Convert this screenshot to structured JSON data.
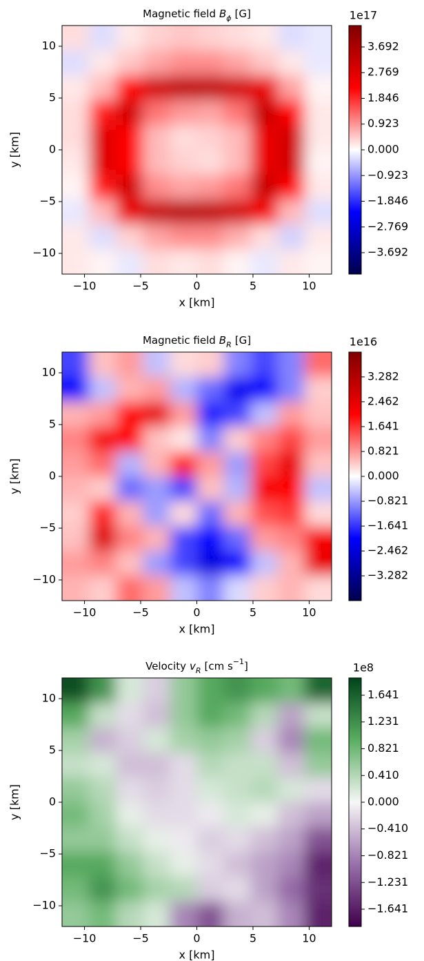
{
  "chart_data": [
    {
      "type": "heatmap",
      "title": "Magnetic field",
      "title_symbol": "B",
      "title_sub": "ϕ",
      "title_unit": "[G]",
      "xlabel": "x [km]",
      "ylabel": "y [km]",
      "xlim": [
        -12,
        12
      ],
      "ylim": [
        -12,
        12
      ],
      "xticks": [
        {
          "value": -10,
          "label": "−10"
        },
        {
          "value": -5,
          "label": "−5"
        },
        0,
        5,
        10
      ],
      "yticks": [
        {
          "value": -10,
          "label": "−10"
        },
        {
          "value": -5,
          "label": "−5"
        },
        0,
        5,
        10
      ],
      "z": [
        [
          0.3,
          -0.3,
          0.2,
          0.4,
          0.5,
          0.4,
          0.3,
          0.2,
          -0.3,
          -0.2
        ],
        [
          -0.3,
          0.2,
          0.5,
          0.8,
          1.0,
          1.0,
          0.8,
          0.5,
          0.2,
          -0.2
        ],
        [
          0.2,
          0.6,
          2.2,
          3.0,
          3.3,
          3.3,
          3.0,
          2.6,
          0.8,
          0.1
        ],
        [
          0.3,
          2.0,
          3.0,
          1.2,
          0.9,
          0.8,
          1.2,
          3.2,
          2.2,
          0.2
        ],
        [
          0.3,
          2.8,
          2.2,
          0.6,
          0.3,
          0.4,
          0.6,
          2.6,
          3.0,
          0.2
        ],
        [
          0.2,
          2.8,
          2.2,
          0.6,
          0.4,
          0.3,
          0.6,
          2.6,
          3.0,
          0.1
        ],
        [
          0.1,
          2.0,
          3.0,
          1.0,
          0.8,
          0.9,
          1.2,
          3.2,
          2.2,
          0.2
        ],
        [
          -0.2,
          0.6,
          2.6,
          3.2,
          3.4,
          3.3,
          3.0,
          2.4,
          0.6,
          -0.3
        ],
        [
          0.2,
          -0.3,
          0.4,
          0.8,
          1.0,
          1.0,
          0.7,
          0.3,
          -0.4,
          0.2
        ],
        [
          0.2,
          0.1,
          -0.2,
          0.3,
          0.2,
          0.3,
          0.1,
          -0.2,
          0.2,
          0.1
        ]
      ],
      "colorbar": {
        "offset_label": "1e17",
        "clim": [
          -4.46,
          4.46
        ],
        "colormap": [
          "#00004c",
          "#0000ff",
          "#ffffff",
          "#ff0000",
          "#800000"
        ],
        "ticks": [
          {
            "value": -3.692,
            "label": "−3.692"
          },
          {
            "value": -2.769,
            "label": "−2.769"
          },
          {
            "value": -1.846,
            "label": "−1.846"
          },
          {
            "value": -0.923,
            "label": "−0.923"
          },
          {
            "value": 0,
            "label": "0.000"
          },
          0.923,
          1.846,
          2.769,
          3.692
        ]
      }
    },
    {
      "type": "heatmap",
      "title": "Magnetic field",
      "title_symbol": "B",
      "title_sub": "R",
      "title_unit": "[G]",
      "xlabel": "x [km]",
      "ylabel": "y [km]",
      "xlim": [
        -12,
        12
      ],
      "ylim": [
        -12,
        12
      ],
      "xticks": [
        {
          "value": -10,
          "label": "−10"
        },
        {
          "value": -5,
          "label": "−5"
        },
        0,
        5,
        10
      ],
      "yticks": [
        {
          "value": -10,
          "label": "−10"
        },
        {
          "value": -5,
          "label": "−5"
        },
        0,
        5,
        10
      ],
      "z": [
        [
          -1.5,
          0.5,
          0.8,
          -0.5,
          0.3,
          0.4,
          -1.0,
          -1.5,
          -1.0,
          1.2
        ],
        [
          -2.0,
          -0.5,
          0.6,
          0.8,
          -0.6,
          -1.2,
          -2.2,
          -2.0,
          -1.0,
          0.4
        ],
        [
          0.6,
          0.8,
          2.0,
          2.4,
          0.8,
          -1.8,
          -1.5,
          -0.5,
          0.8,
          0.5
        ],
        [
          1.0,
          2.2,
          2.0,
          0.5,
          0.2,
          -1.0,
          0.4,
          1.0,
          1.5,
          0.8
        ],
        [
          0.8,
          1.2,
          -0.6,
          0.6,
          1.8,
          0.8,
          -0.8,
          1.5,
          2.4,
          0.5
        ],
        [
          0.6,
          0.4,
          -1.2,
          -0.8,
          -1.5,
          0.5,
          -0.6,
          2.2,
          2.0,
          -0.5
        ],
        [
          0.4,
          1.8,
          0.6,
          -0.8,
          0.3,
          -1.2,
          0.6,
          1.4,
          1.6,
          0.3
        ],
        [
          0.5,
          2.6,
          1.0,
          0.6,
          -1.5,
          -2.0,
          -1.2,
          0.8,
          1.0,
          2.2
        ],
        [
          0.8,
          1.0,
          0.5,
          -0.8,
          -1.5,
          -2.4,
          -2.0,
          -0.5,
          0.6,
          2.4
        ],
        [
          0.6,
          0.4,
          1.2,
          0.8,
          -0.5,
          -1.0,
          -0.3,
          0.4,
          0.6,
          0.3
        ]
      ],
      "colorbar": {
        "offset_label": "1e16",
        "clim": [
          -4.1,
          4.1
        ],
        "colormap": [
          "#00004c",
          "#0000ff",
          "#ffffff",
          "#ff0000",
          "#800000"
        ],
        "ticks": [
          {
            "value": -3.282,
            "label": "−3.282"
          },
          {
            "value": -2.462,
            "label": "−2.462"
          },
          {
            "value": -1.641,
            "label": "−1.641"
          },
          {
            "value": -0.821,
            "label": "−0.821"
          },
          {
            "value": 0,
            "label": "0.000"
          },
          0.821,
          1.641,
          2.462,
          3.282
        ]
      }
    },
    {
      "type": "heatmap",
      "title": "Velocity",
      "title_symbol": "v",
      "title_sub": "R",
      "title_unit": "[cm s",
      "title_unit_sup": "−1",
      "title_unit_end": "]",
      "xlabel": "x [km]",
      "ylabel": "y [km]",
      "xlim": [
        -12,
        12
      ],
      "ylim": [
        -12,
        12
      ],
      "xticks": [
        {
          "value": -10,
          "label": "−10"
        },
        {
          "value": -5,
          "label": "−5"
        },
        0,
        5,
        10
      ],
      "yticks": [
        {
          "value": -10,
          "label": "−10"
        },
        {
          "value": -5,
          "label": "−5"
        },
        0,
        5,
        10
      ],
      "z": [
        [
          1.8,
          1.2,
          0.2,
          -0.3,
          0.6,
          1.0,
          1.2,
          1.0,
          0.8,
          1.6
        ],
        [
          1.0,
          0.3,
          -0.2,
          -0.4,
          0.6,
          1.0,
          0.8,
          0.4,
          -0.6,
          0.3
        ],
        [
          0.5,
          -0.5,
          -0.3,
          0.2,
          0.5,
          0.6,
          0.5,
          -0.3,
          -0.8,
          0.8
        ],
        [
          0.3,
          0.2,
          -0.4,
          -0.4,
          -0.2,
          0.4,
          0.3,
          0.3,
          -0.4,
          0.6
        ],
        [
          0.6,
          0.4,
          -0.2,
          -0.3,
          -0.2,
          0.2,
          0.3,
          0.4,
          0.2,
          -0.2
        ],
        [
          0.8,
          0.5,
          0.1,
          -0.2,
          -0.2,
          -0.1,
          0.2,
          0.1,
          -0.4,
          -0.6
        ],
        [
          0.6,
          0.6,
          0.3,
          0.1,
          -0.1,
          -0.3,
          -0.2,
          -0.4,
          -0.6,
          -1.2
        ],
        [
          1.0,
          1.0,
          0.6,
          0.3,
          0.1,
          -0.2,
          -0.4,
          -0.6,
          -0.8,
          -1.6
        ],
        [
          0.8,
          1.2,
          0.8,
          0.5,
          0.4,
          -0.3,
          -0.2,
          -0.6,
          -1.0,
          -1.5
        ],
        [
          0.6,
          0.8,
          0.4,
          0.2,
          -0.8,
          -1.2,
          -0.5,
          -0.4,
          -0.8,
          -1.6
        ]
      ],
      "colorbar": {
        "offset_label": "1e8",
        "clim": [
          -1.906,
          1.906
        ],
        "colormap": [
          "#40004b",
          "#9970ab",
          "#f7f7f7",
          "#5aae61",
          "#00441b"
        ],
        "ticks": [
          {
            "value": -1.641,
            "label": "−1.641"
          },
          {
            "value": -1.231,
            "label": "−1.231"
          },
          {
            "value": -0.821,
            "label": "−0.821"
          },
          {
            "value": -0.41,
            "label": "−0.410"
          },
          {
            "value": 0,
            "label": "0.000"
          },
          {
            "value": 0.41,
            "label": "0.410"
          },
          0.821,
          1.231,
          1.641
        ]
      }
    }
  ]
}
